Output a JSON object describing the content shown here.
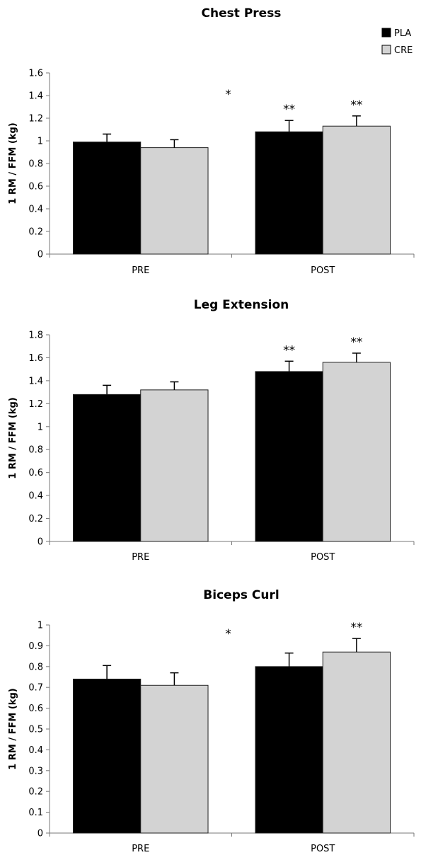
{
  "legend": {
    "items": [
      {
        "label": "PLA",
        "color": "#000000"
      },
      {
        "label": "CRE",
        "color": "#d3d3d3"
      }
    ]
  },
  "chart_data": [
    {
      "type": "bar",
      "title": "Chest Press",
      "ylabel": "1 RM / FFM (kg)",
      "categories": [
        "PRE",
        "POST"
      ],
      "ylim": [
        0,
        1.6
      ],
      "yticks": [
        "0",
        "0.2",
        "0.4",
        "0.6",
        "0.8",
        "1",
        "1.2",
        "1.4",
        "1.6"
      ],
      "series": [
        {
          "name": "PLA",
          "color": "#000000",
          "values": [
            0.99,
            1.08
          ],
          "errors": [
            0.07,
            0.1
          ],
          "annotations": [
            "",
            "**"
          ]
        },
        {
          "name": "CRE",
          "color": "#d3d3d3",
          "values": [
            0.94,
            1.13
          ],
          "errors": [
            0.07,
            0.09
          ],
          "annotations": [
            "",
            "**"
          ]
        }
      ],
      "group_annotation": "*"
    },
    {
      "type": "bar",
      "title": "Leg Extension",
      "ylabel": "1 RM / FFM (kg)",
      "categories": [
        "PRE",
        "POST"
      ],
      "ylim": [
        0,
        1.8
      ],
      "yticks": [
        "0",
        "0.2",
        "0.4",
        "0.6",
        "0.8",
        "1",
        "1.2",
        "1.4",
        "1.6",
        "1.8"
      ],
      "series": [
        {
          "name": "PLA",
          "color": "#000000",
          "values": [
            1.28,
            1.48
          ],
          "errors": [
            0.08,
            0.09
          ],
          "annotations": [
            "",
            "**"
          ]
        },
        {
          "name": "CRE",
          "color": "#d3d3d3",
          "values": [
            1.32,
            1.56
          ],
          "errors": [
            0.07,
            0.08
          ],
          "annotations": [
            "",
            "**"
          ]
        }
      ],
      "group_annotation": ""
    },
    {
      "type": "bar",
      "title": "Biceps Curl",
      "ylabel": "1 RM / FFM (kg)",
      "categories": [
        "PRE",
        "POST"
      ],
      "ylim": [
        0,
        1
      ],
      "yticks": [
        "0",
        "0.1",
        "0.2",
        "0.3",
        "0.4",
        "0.5",
        "0.6",
        "0.7",
        "0.8",
        "0.9",
        "1"
      ],
      "series": [
        {
          "name": "PLA",
          "color": "#000000",
          "values": [
            0.74,
            0.8
          ],
          "errors": [
            0.065,
            0.065
          ],
          "annotations": [
            "",
            ""
          ]
        },
        {
          "name": "CRE",
          "color": "#d3d3d3",
          "values": [
            0.71,
            0.87
          ],
          "errors": [
            0.06,
            0.065
          ],
          "annotations": [
            "",
            "**"
          ]
        }
      ],
      "group_annotation": "*"
    }
  ]
}
